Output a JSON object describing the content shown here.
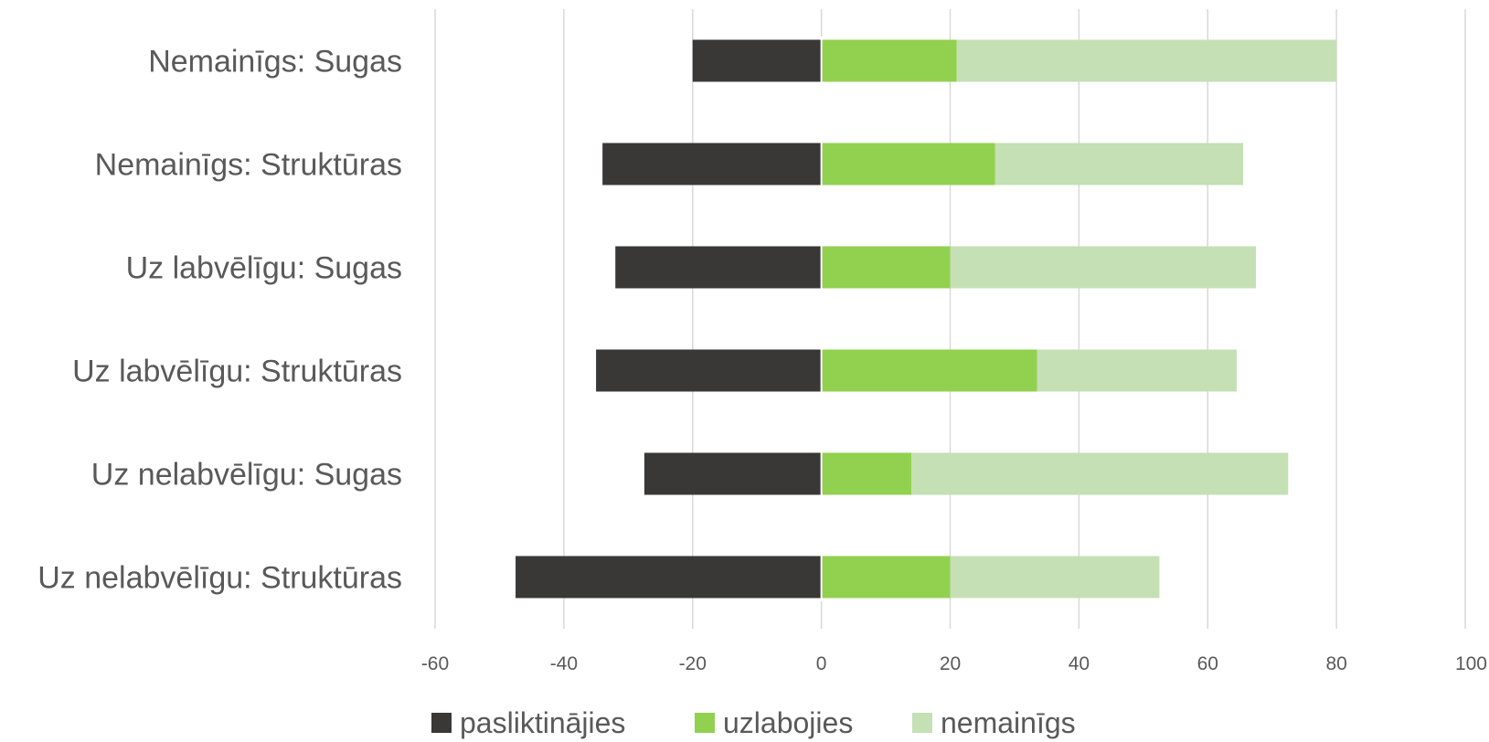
{
  "chart_data": {
    "type": "bar",
    "orientation": "horizontal",
    "stacked": "diverging",
    "categories": [
      "Nemainīgs: Sugas",
      "Nemainīgs: Struktūras",
      "Uz labvēlīgu: Sugas",
      "Uz labvēlīgu: Struktūras",
      "Uz nelabvēlīgu: Sugas",
      "Uz nelabvēlīgu: Struktūras"
    ],
    "series": [
      {
        "name": "pasliktinājies",
        "color": "#3a3836",
        "values": [
          -20,
          -34,
          -32,
          -35,
          -27.5,
          -47.5
        ]
      },
      {
        "name": "uzlabojies",
        "color": "#92d050",
        "values": [
          21,
          27,
          20,
          33.5,
          14,
          20
        ]
      },
      {
        "name": "nemainīgs",
        "color": "#c5e0b4",
        "values": [
          59,
          38.5,
          47.5,
          31,
          58.5,
          32.5
        ]
      }
    ],
    "xlim": [
      -60,
      100
    ],
    "xticks": [
      "-60",
      "-40",
      "-20",
      "0",
      "20",
      "40",
      "60",
      "80",
      "100"
    ],
    "xtick_values": [
      -60,
      -40,
      -20,
      0,
      20,
      40,
      60,
      80,
      100
    ],
    "grid": true,
    "legend_position": "bottom",
    "title": "",
    "xlabel": "",
    "ylabel": ""
  }
}
